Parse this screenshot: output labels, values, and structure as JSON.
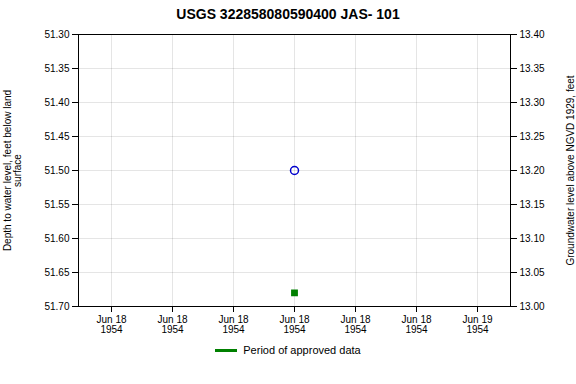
{
  "chart_data": {
    "type": "scatter",
    "title": "USGS 322858080590400 JAS- 101",
    "ylabel": "Depth to water level, feet below land\nsurface",
    "y2label": "Groundwater level above NGVD 1929, feet",
    "categories": [
      "Jun 18\n1954",
      "Jun 18\n1954",
      "Jun 18\n1954",
      "Jun 18\n1954",
      "Jun 18\n1954",
      "Jun 18\n1954",
      "Jun 19\n1954"
    ],
    "series": [
      {
        "color": "#0000cc",
        "marker": "circle",
        "values": [
          null,
          null,
          null,
          51.5,
          null,
          null,
          null
        ]
      },
      {
        "name": "Period of approved data",
        "color": "#008000",
        "marker": "square",
        "values": [
          null,
          null,
          null,
          51.68,
          null,
          null,
          null
        ]
      }
    ],
    "ylim": [
      51.7,
      51.3
    ],
    "yticks": [
      {
        "value": 51.3,
        "label": "51.30"
      },
      51.35,
      {
        "value": 51.4,
        "label": "51.40"
      },
      51.45,
      {
        "value": 51.5,
        "label": "51.50"
      },
      51.55,
      {
        "value": 51.6,
        "label": "51.60"
      },
      51.65,
      {
        "value": 51.7,
        "label": "51.70"
      }
    ],
    "y2lim": [
      13.0,
      13.4
    ],
    "y2ticks": [
      {
        "value": 13.4,
        "label": "13.40"
      },
      13.35,
      {
        "value": 13.3,
        "label": "13.30"
      },
      13.25,
      {
        "value": 13.2,
        "label": "13.20"
      },
      13.15,
      {
        "value": 13.1,
        "label": "13.10"
      },
      13.05,
      {
        "value": 13.0,
        "label": "13.00"
      }
    ],
    "grid": true,
    "legend": "bottom"
  }
}
